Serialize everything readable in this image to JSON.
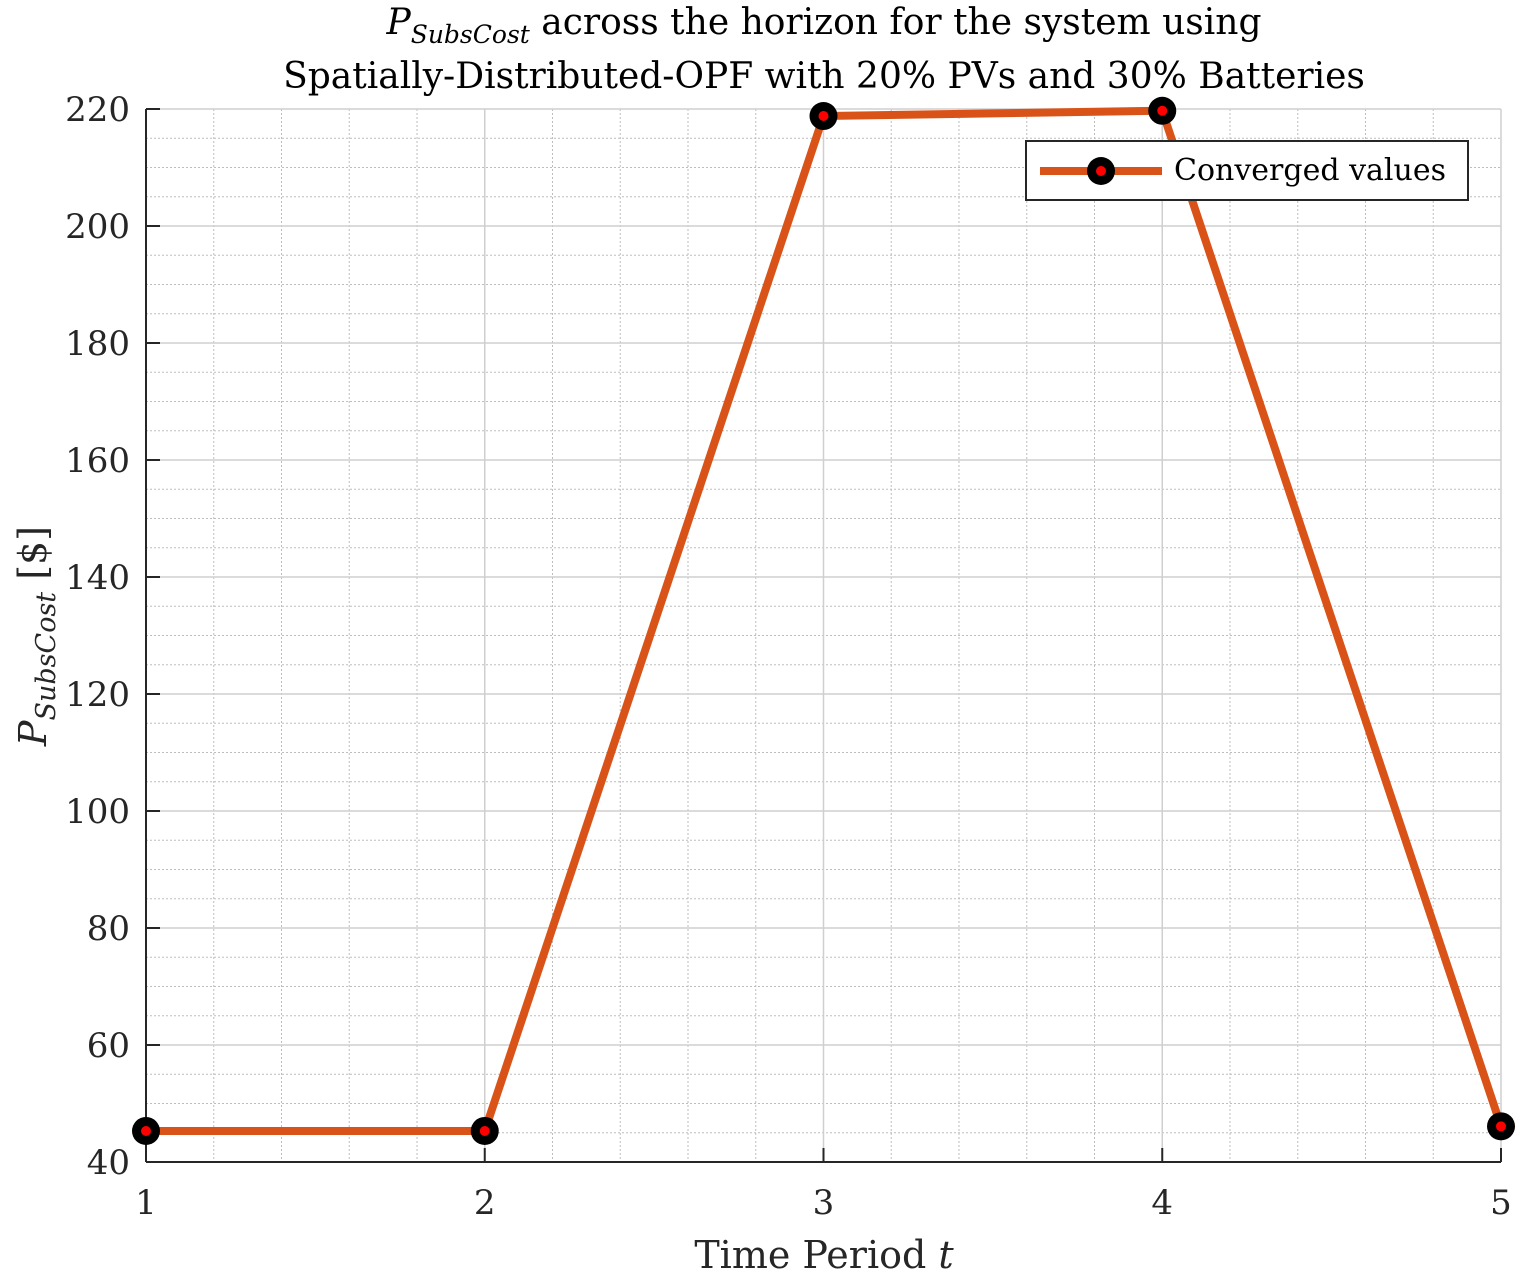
{
  "chart_data": {
    "type": "line",
    "title": {
      "line1_symbol": "P",
      "line1_subscript": "SubsCost",
      "line1_rest": " across the horizon for the system using",
      "line2": "Spatially-Distributed-OPF with 20% PVs and 30% Batteries"
    },
    "xlabel": {
      "text": "Time Period ",
      "italic": "t"
    },
    "ylabel": {
      "symbol": "P",
      "subscript": "SubsCost",
      "unit": " [$]"
    },
    "x": [
      1,
      2,
      3,
      4,
      5
    ],
    "xticks": [
      "1",
      "2",
      "3",
      "4",
      "5"
    ],
    "yticks": [
      "40",
      "60",
      "80",
      "100",
      "120",
      "140",
      "160",
      "180",
      "200",
      "220"
    ],
    "xlim": [
      1,
      5
    ],
    "ylim": [
      40,
      220
    ],
    "grid": true,
    "minor_grid": true,
    "legend_position": "top-right",
    "series": [
      {
        "name": "Converged values",
        "values": [
          45.3,
          45.3,
          218.8,
          219.7,
          46.1
        ],
        "line_color": "#d95319",
        "marker_edge_color": "#000000",
        "marker_face_color": "#ff0000"
      }
    ]
  }
}
